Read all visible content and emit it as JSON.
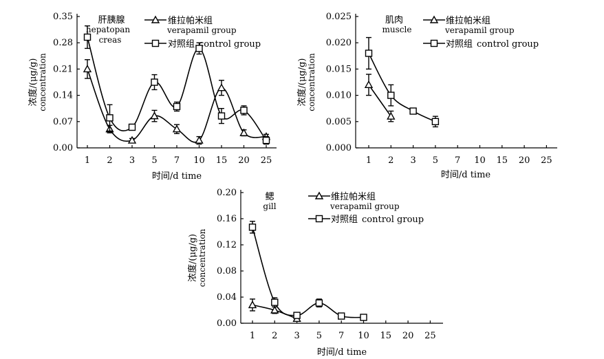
{
  "chart_data": [
    {
      "id": "hepatopancreas",
      "type": "line",
      "title_zh": "肝胰腺",
      "title_en_1": "hepatopan",
      "title_en_2": "creas",
      "xlabel": "时间/d time",
      "ylabel_zh": "浓度/(μg/g)",
      "ylabel_en": "concentration",
      "categories": [
        "1",
        "2",
        "3",
        "5",
        "7",
        "10",
        "15",
        "20",
        "25"
      ],
      "yticks": [
        "0.00",
        "0.07",
        "0.14",
        "0.21",
        "0.28",
        "0.35"
      ],
      "ylim": [
        0,
        0.35
      ],
      "legend": [
        {
          "marker": "triangle",
          "zh": "维拉帕米组",
          "en": "verapamil group"
        },
        {
          "marker": "square",
          "zh": "对照组",
          "en": "control group"
        }
      ],
      "series": [
        {
          "name": "verapamil group",
          "marker": "triangle",
          "values": [
            0.21,
            0.05,
            0.02,
            0.085,
            0.05,
            0.02,
            0.16,
            0.04,
            0.03
          ],
          "errors": [
            0.025,
            0.01,
            0.005,
            0.015,
            0.012,
            0.01,
            0.02,
            0.008,
            0.006
          ]
        },
        {
          "name": "control group",
          "marker": "square",
          "values": [
            0.295,
            0.08,
            0.055,
            0.175,
            0.11,
            0.265,
            0.085,
            0.1,
            0.02
          ],
          "errors": [
            0.03,
            0.035,
            0.008,
            0.02,
            0.012,
            0.015,
            0.02,
            0.012,
            0.01
          ]
        }
      ]
    },
    {
      "id": "muscle",
      "type": "line",
      "title_zh": "肌肉",
      "title_en_1": "muscle",
      "title_en_2": "",
      "xlabel": "时间/d time",
      "ylabel_zh": "浓度/(μg/g)",
      "ylabel_en": "concentration",
      "categories": [
        "1",
        "2",
        "3",
        "5",
        "7",
        "10",
        "15",
        "20",
        "25"
      ],
      "yticks": [
        "0.000",
        "0.005",
        "0.010",
        "0.015",
        "0.020",
        "0.025"
      ],
      "ylim": [
        0,
        0.025
      ],
      "legend": [
        {
          "marker": "triangle",
          "zh": "维拉帕米组",
          "en": "verapamil group"
        },
        {
          "marker": "square",
          "zh": "对照组",
          "en": "control group"
        }
      ],
      "series": [
        {
          "name": "verapamil group",
          "marker": "triangle",
          "values": [
            0.012,
            0.006,
            null,
            null,
            null,
            null,
            null,
            null,
            null
          ],
          "errors": [
            0.002,
            0.001,
            0,
            0,
            0,
            0,
            0,
            0,
            0
          ]
        },
        {
          "name": "control group",
          "marker": "square",
          "values": [
            0.018,
            0.01,
            0.007,
            0.005,
            null,
            null,
            null,
            null,
            null
          ],
          "errors": [
            0.003,
            0.002,
            0.0003,
            0.001,
            0,
            0,
            0,
            0,
            0
          ]
        }
      ]
    },
    {
      "id": "gill",
      "type": "line",
      "title_zh": "鳃",
      "title_en_1": "gill",
      "title_en_2": "",
      "xlabel": "时间/d time",
      "ylabel_zh": "浓度/(μg/g)",
      "ylabel_en": "concentration",
      "categories": [
        "1",
        "2",
        "3",
        "5",
        "7",
        "10",
        "15",
        "20",
        "25"
      ],
      "yticks": [
        "0.00",
        "0.04",
        "0.08",
        "0.12",
        "0.16",
        "0.20"
      ],
      "ylim": [
        0,
        0.2
      ],
      "legend": [
        {
          "marker": "triangle",
          "zh": "维拉帕米组",
          "en": "verapamil group"
        },
        {
          "marker": "square",
          "zh": "对照组",
          "en": "control group"
        }
      ],
      "series": [
        {
          "name": "verapamil group",
          "marker": "triangle",
          "values": [
            0.028,
            0.02,
            0.007,
            null,
            null,
            null,
            null,
            null,
            null
          ],
          "errors": [
            0.009,
            0.005,
            0.003,
            0,
            0,
            0,
            0,
            0,
            0
          ]
        },
        {
          "name": "control group",
          "marker": "square",
          "values": [
            0.147,
            0.032,
            0.012,
            0.031,
            0.011,
            0.009,
            null,
            null,
            null
          ],
          "errors": [
            0.009,
            0.007,
            0.003,
            0.006,
            0.002,
            0.001,
            0,
            0,
            0
          ]
        }
      ]
    }
  ]
}
